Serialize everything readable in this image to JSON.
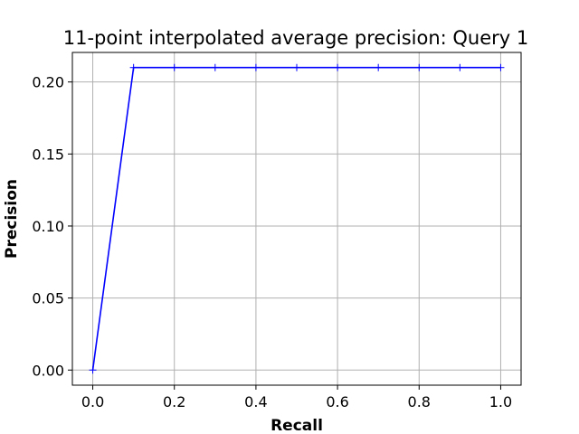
{
  "chart_data": {
    "type": "line",
    "title": "11-point interpolated average precision: Query 1",
    "xlabel": "Recall",
    "ylabel": "Precision",
    "xlim": [
      -0.05,
      1.05
    ],
    "ylim": [
      -0.0105,
      0.2205
    ],
    "xticks": [
      0.0,
      0.2,
      0.4,
      0.6,
      0.8,
      1.0
    ],
    "xtick_labels": [
      "0.0",
      "0.2",
      "0.4",
      "0.6",
      "0.8",
      "1.0"
    ],
    "yticks": [
      0.0,
      0.05,
      0.1,
      0.15,
      0.2
    ],
    "ytick_labels": [
      "0.00",
      "0.05",
      "0.10",
      "0.15",
      "0.20"
    ],
    "grid": true,
    "series": [
      {
        "color": "#0000ff",
        "marker": "plus",
        "x": [
          0.0,
          0.1,
          0.2,
          0.3,
          0.4,
          0.5,
          0.6,
          0.7,
          0.8,
          0.9,
          1.0
        ],
        "y": [
          0.0,
          0.21,
          0.21,
          0.21,
          0.21,
          0.21,
          0.21,
          0.21,
          0.21,
          0.21,
          0.21
        ]
      }
    ]
  }
}
